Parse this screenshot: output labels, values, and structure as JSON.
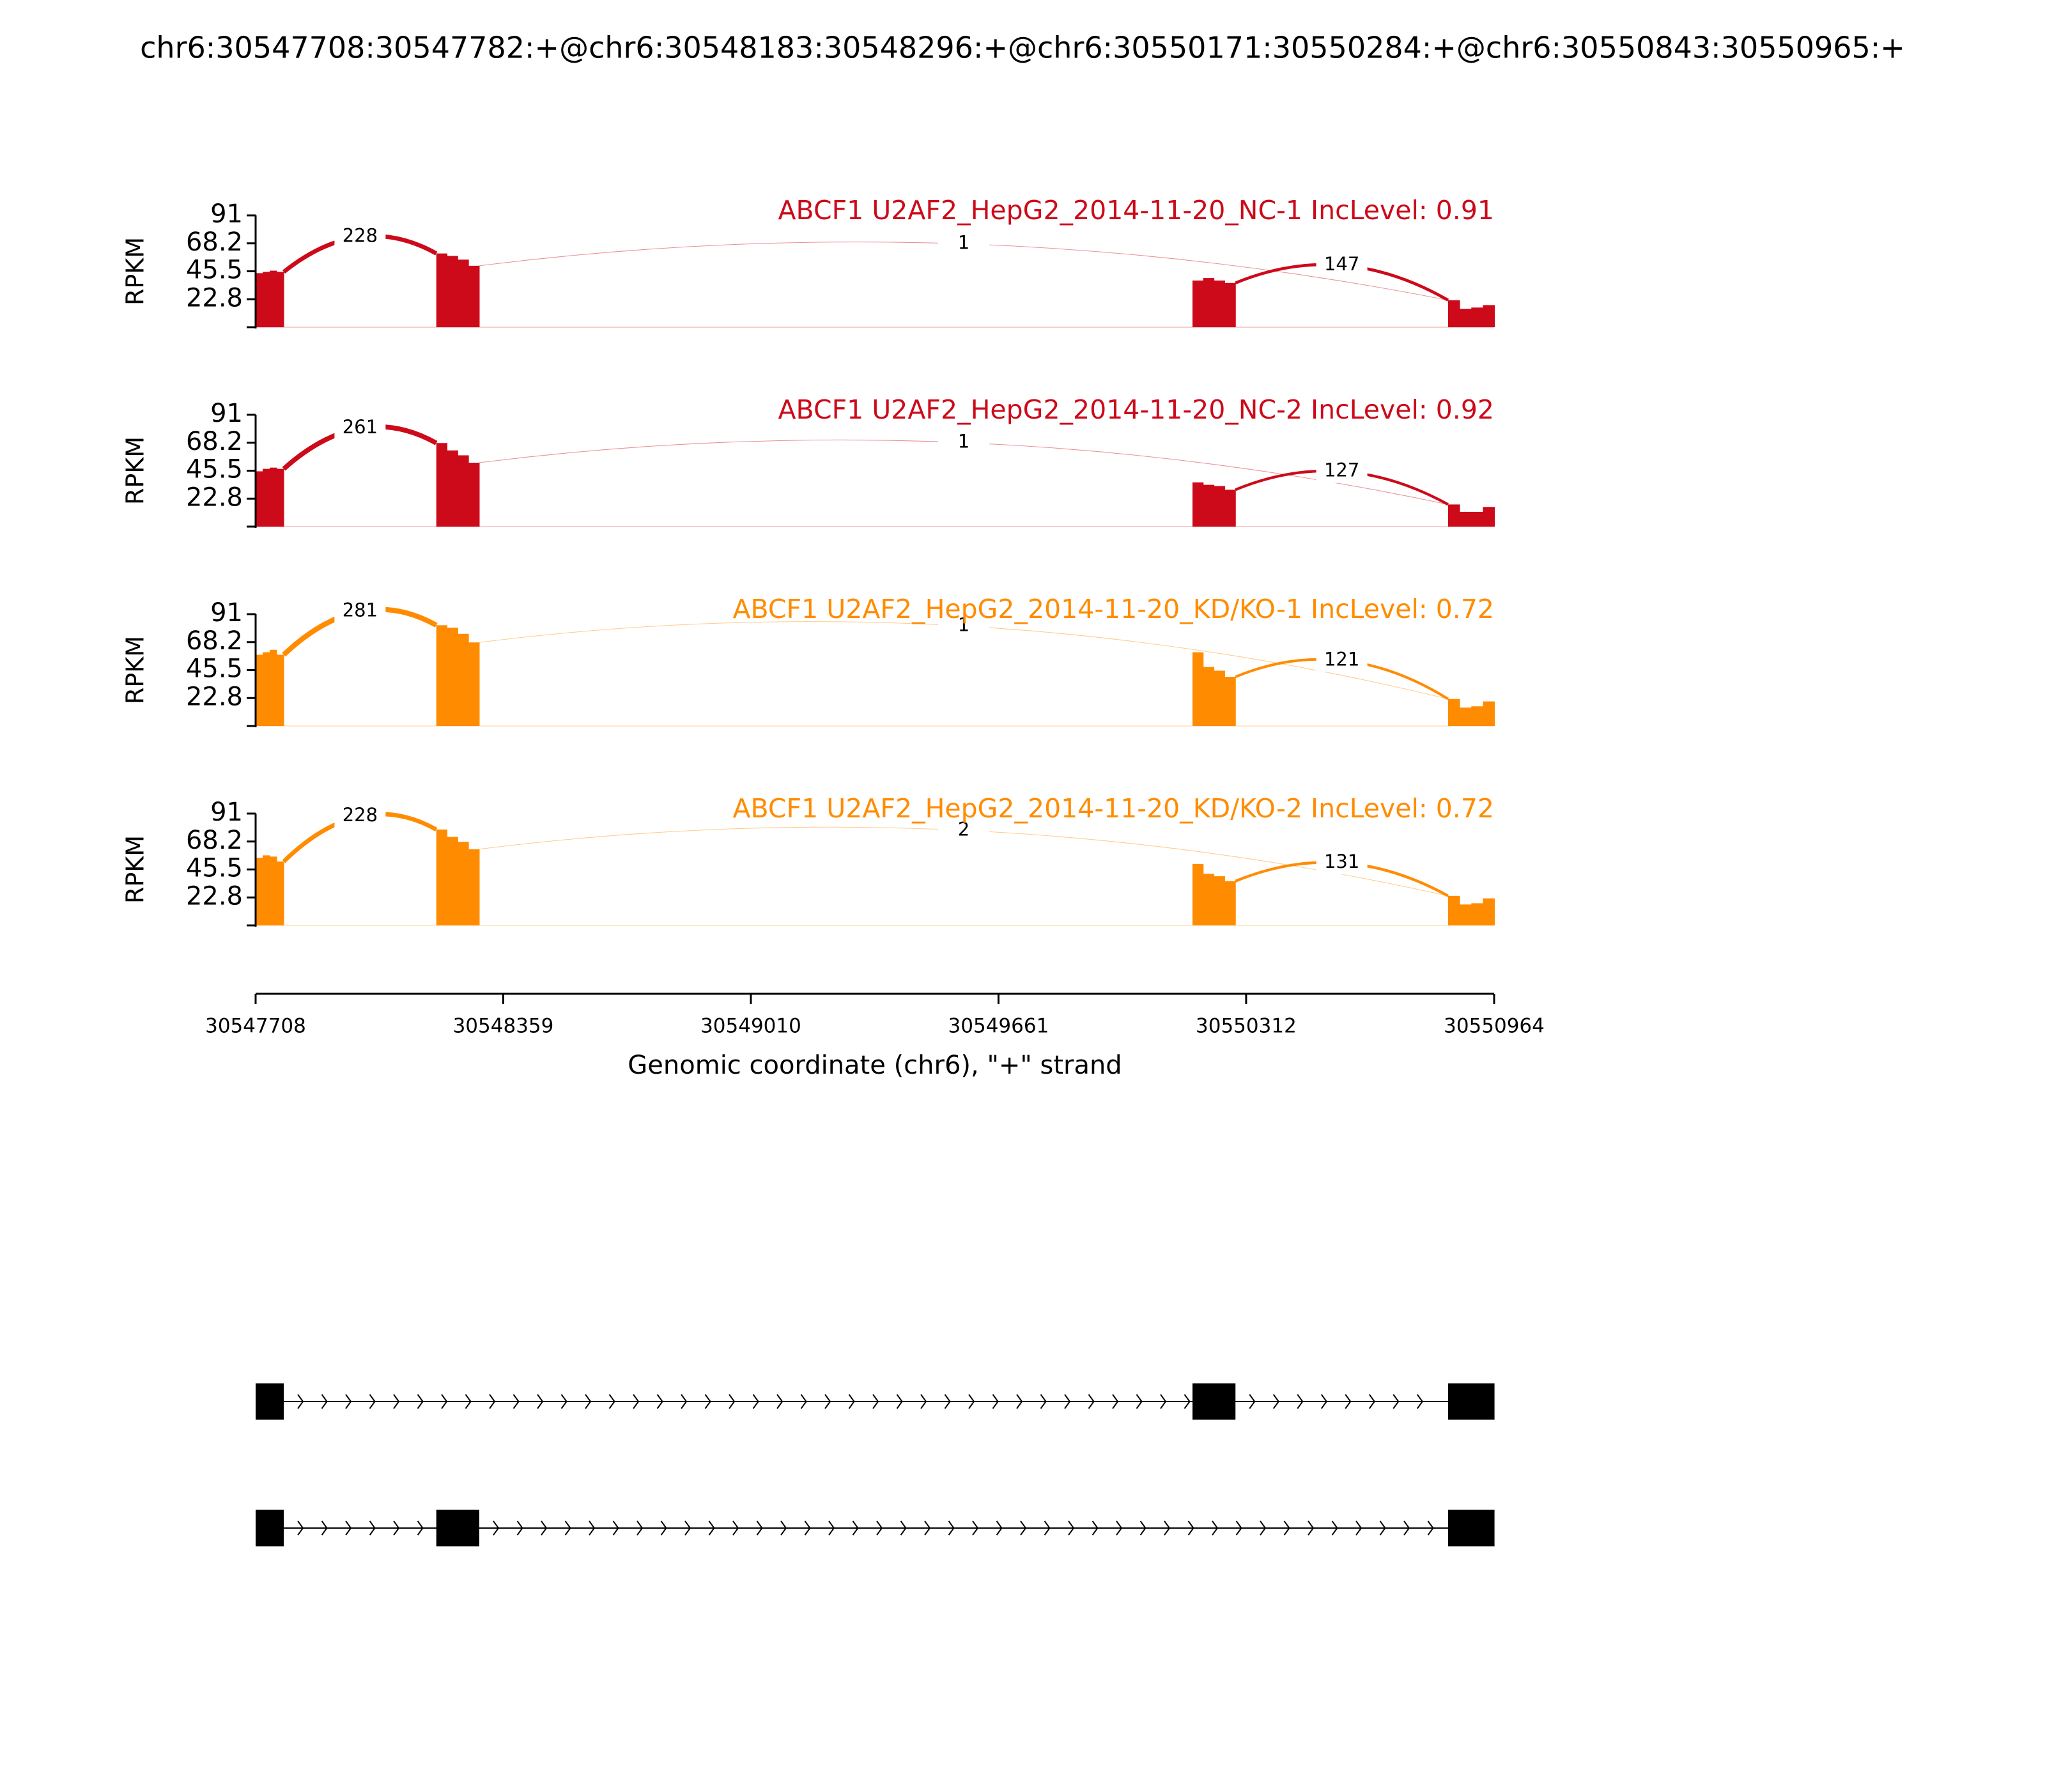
{
  "title": "chr6:30547708:30547782:+@chr6:30548183:30548296:+@chr6:30550171:30550284:+@chr6:30550843:30550965:+",
  "x_axis": {
    "xlim": [
      30547708,
      30550964
    ],
    "xticks": [
      30547708,
      30548359,
      30549010,
      30549661,
      30550312,
      30550964
    ],
    "xlabel": "Genomic coordinate (chr6), \"+\" strand"
  },
  "chart_data": [
    {
      "type": "sashimi",
      "title": "ABCF1 U2AF2_HepG2_2014-11-20_NC-1 IncLevel: 0.91",
      "color": "#cc0a1a",
      "ylabel": "RPKM",
      "ylim": [
        0,
        91
      ],
      "yticks": [
        {
          "value": 22.75,
          "label": "22.8"
        },
        45.5,
        {
          "value": 68.25,
          "label": "68.2"
        },
        91
      ],
      "coverage": [
        {
          "start": 30547708,
          "end": 30547782,
          "values": [
            44,
            45,
            46,
            45
          ]
        },
        {
          "start": 30548183,
          "end": 30548296,
          "values": [
            60,
            58,
            55,
            50
          ]
        },
        {
          "start": 30550171,
          "end": 30550284,
          "values": [
            38,
            40,
            38,
            36
          ]
        },
        {
          "start": 30550843,
          "end": 30550965,
          "values": [
            22,
            15,
            16,
            18
          ]
        }
      ],
      "junctions": [
        {
          "start": 30547782,
          "end": 30548183,
          "count": 228
        },
        {
          "start": 30548296,
          "end": 30550843,
          "count": 1
        },
        {
          "start": 30550284,
          "end": 30550843,
          "count": 147
        }
      ]
    },
    {
      "type": "sashimi",
      "title": "ABCF1 U2AF2_HepG2_2014-11-20_NC-2 IncLevel: 0.92",
      "color": "#cc0a1a",
      "ylabel": "RPKM",
      "ylim": [
        0,
        91
      ],
      "yticks": [
        {
          "value": 22.75,
          "label": "22.8"
        },
        45.5,
        {
          "value": 68.25,
          "label": "68.2"
        },
        91
      ],
      "coverage": [
        {
          "start": 30547708,
          "end": 30547782,
          "values": [
            45,
            47,
            48,
            47
          ]
        },
        {
          "start": 30548183,
          "end": 30548296,
          "values": [
            68,
            62,
            58,
            52
          ]
        },
        {
          "start": 30550171,
          "end": 30550284,
          "values": [
            36,
            34,
            33,
            30
          ]
        },
        {
          "start": 30550843,
          "end": 30550965,
          "values": [
            18,
            12,
            12,
            16
          ]
        }
      ],
      "junctions": [
        {
          "start": 30547782,
          "end": 30548183,
          "count": 261
        },
        {
          "start": 30548296,
          "end": 30550843,
          "count": 1
        },
        {
          "start": 30550284,
          "end": 30550843,
          "count": 127
        }
      ]
    },
    {
      "type": "sashimi",
      "title": "ABCF1 U2AF2_HepG2_2014-11-20_KD/KO-1 IncLevel: 0.72",
      "color": "#ff8c00",
      "ylabel": "RPKM",
      "ylim": [
        0,
        91
      ],
      "yticks": [
        {
          "value": 22.75,
          "label": "22.8"
        },
        45.5,
        {
          "value": 68.25,
          "label": "68.2"
        },
        91
      ],
      "coverage": [
        {
          "start": 30547708,
          "end": 30547782,
          "values": [
            58,
            60,
            62,
            58
          ]
        },
        {
          "start": 30548183,
          "end": 30548296,
          "values": [
            82,
            80,
            75,
            68
          ]
        },
        {
          "start": 30550171,
          "end": 30550284,
          "values": [
            60,
            48,
            45,
            40
          ]
        },
        {
          "start": 30550843,
          "end": 30550965,
          "values": [
            22,
            15,
            16,
            20
          ]
        }
      ],
      "junctions": [
        {
          "start": 30547782,
          "end": 30548183,
          "count": 281
        },
        {
          "start": 30548296,
          "end": 30550843,
          "count": 1
        },
        {
          "start": 30550284,
          "end": 30550843,
          "count": 121
        }
      ]
    },
    {
      "type": "sashimi",
      "title": "ABCF1 U2AF2_HepG2_2014-11-20_KD/KO-2 IncLevel: 0.72",
      "color": "#ff8c00",
      "ylabel": "RPKM",
      "ylim": [
        0,
        91
      ],
      "yticks": [
        {
          "value": 22.75,
          "label": "22.8"
        },
        45.5,
        {
          "value": 68.25,
          "label": "68.2"
        },
        91
      ],
      "coverage": [
        {
          "start": 30547708,
          "end": 30547782,
          "values": [
            55,
            57,
            56,
            52
          ]
        },
        {
          "start": 30548183,
          "end": 30548296,
          "values": [
            78,
            72,
            68,
            62
          ]
        },
        {
          "start": 30550171,
          "end": 30550284,
          "values": [
            50,
            42,
            40,
            36
          ]
        },
        {
          "start": 30550843,
          "end": 30550965,
          "values": [
            24,
            17,
            18,
            22
          ]
        }
      ],
      "junctions": [
        {
          "start": 30547782,
          "end": 30548183,
          "count": 228
        },
        {
          "start": 30548296,
          "end": 30550843,
          "count": 2
        },
        {
          "start": 30550284,
          "end": 30550843,
          "count": 131
        }
      ]
    }
  ],
  "gene_model": {
    "isoforms": [
      {
        "exons": [
          [
            30547708,
            30547782
          ],
          [
            30550171,
            30550284
          ],
          [
            30550843,
            30550965
          ]
        ]
      },
      {
        "exons": [
          [
            30547708,
            30547782
          ],
          [
            30548183,
            30548296
          ],
          [
            30550843,
            30550965
          ]
        ]
      }
    ]
  }
}
